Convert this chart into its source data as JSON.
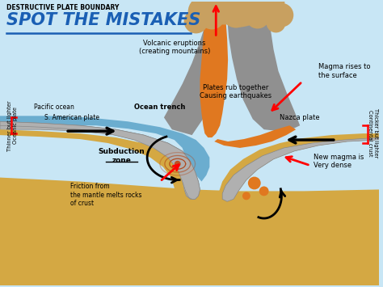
{
  "title_small": "DESTRUCTIVE PLATE BOUNDARY",
  "title_large": "SPOT THE MISTAKES",
  "bg_sky": "#c8e6f5",
  "bg_ocean": "#5ba3c9",
  "mantle_color": "#d4a843",
  "plate_color": "#b0b0b0",
  "plate_edge": "#888888",
  "lava_color": "#e07820",
  "volcano_color": "#909090",
  "cloud_color": "#c8a060",
  "labels": {
    "volcanic_eruptions": "Volcanic eruptions\n(creating mountains)",
    "magma_rises": "Magma rises to\nthe surface",
    "ocean_trench": "Ocean trench",
    "pacific_ocean": "Pacific ocean",
    "s_american": "S. American plate",
    "plates_rub": "Plates rub together\nCausing earthquakes",
    "nazca_plate": "Nazca plate",
    "subduction_zone": "Subduction\nzone",
    "friction": "Friction from\nthe mantle melts rocks\nof crust",
    "new_magma": "New magma is\nVery dense",
    "thinner_lighter": "Thinner but lighter\nOceanic plate",
    "thicker_lighter": "Thicker but lighter\nContinental crust"
  }
}
